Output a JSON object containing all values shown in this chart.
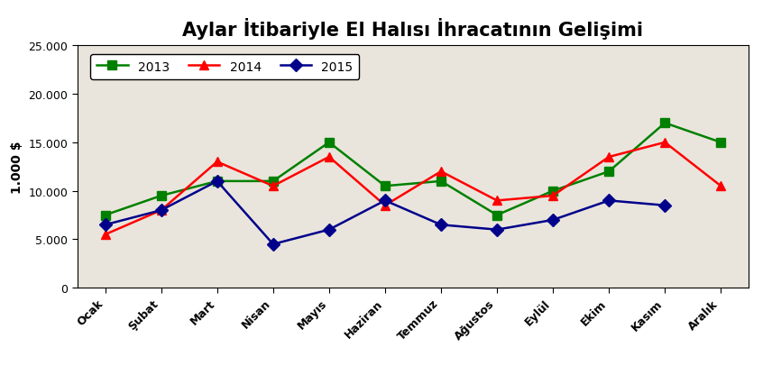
{
  "title": "Aylar İtibariyle El Halısı İhracatının Gelişimi",
  "ylabel": "1.000 $",
  "months": [
    "Ocak",
    "Şubat",
    "Mart",
    "Nisan",
    "Mayıs",
    "Haziran",
    "Temmuz",
    "Ağustos",
    "Eylül",
    "Ekim",
    "Kasım",
    "Aralık"
  ],
  "series": [
    {
      "label": "2013",
      "color": "#008000",
      "marker": "s",
      "values": [
        7500,
        9500,
        11000,
        11000,
        15000,
        10500,
        11000,
        7500,
        10000,
        12000,
        17000,
        15000
      ]
    },
    {
      "label": "2014",
      "color": "#ff0000",
      "marker": "^",
      "values": [
        5500,
        8000,
        13000,
        10500,
        13500,
        8500,
        12000,
        9000,
        9500,
        13500,
        15000,
        10500
      ]
    },
    {
      "label": "2015",
      "color": "#00008B",
      "marker": "D",
      "values": [
        6500,
        8000,
        11000,
        4500,
        6000,
        9000,
        6500,
        6000,
        7000,
        9000,
        8500,
        null
      ]
    }
  ],
  "ylim": [
    0,
    25000
  ],
  "yticks": [
    0,
    5000,
    10000,
    15000,
    20000,
    25000
  ],
  "plot_bg_color": "#EAE5DC",
  "outer_bg_color": "#ffffff",
  "title_color": "#000000",
  "title_fontsize": 15,
  "legend_fontsize": 10,
  "tick_fontsize": 9,
  "marker_size": 7,
  "line_width": 1.8,
  "fig_width": 8.56,
  "fig_height": 4.27,
  "dpi": 100
}
